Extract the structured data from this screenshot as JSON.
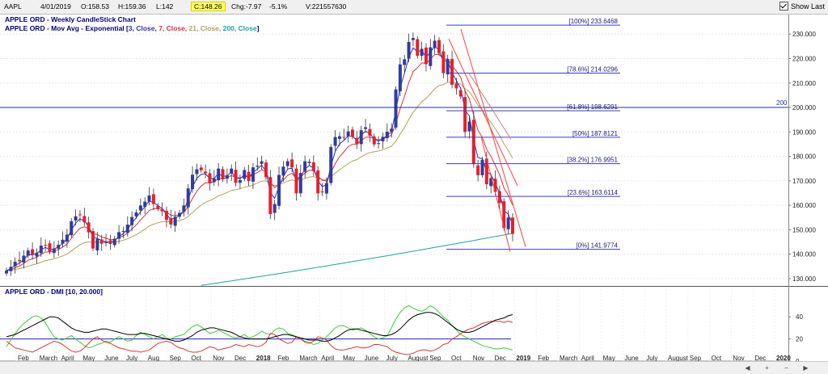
{
  "toolbar": {
    "symbol": "AAPL",
    "date": "4/01/2019",
    "open": "O:158.53",
    "high": "H:159.36",
    "low": "L:142",
    "close": "C:148.26",
    "change": "Chg:-7.97",
    "change_pct": "-5.1%",
    "volume": "V:221557630",
    "show_last_label": "Show Last",
    "show_last_checked": true
  },
  "colors": {
    "up_candle": "#2f3d9a",
    "down_candle": "#e5202a",
    "ema3": "#2b2bd9",
    "ema7": "#e0303c",
    "ema21": "#b8a050",
    "ema200": "#1aa5a5",
    "fib": "#3a3ad0",
    "di_plus": "#36d036",
    "di_minus": "#e83030",
    "adx": "#000000",
    "threshold": "#2020d0",
    "annotation": "#ff4040"
  },
  "chart_data": [
    {
      "type": "candlestick",
      "title": "APPLE ORD - Weekly CandleStick Chart",
      "subtitle": "APPLE ORD - Mov Avg - Exponential",
      "ma_legend": {
        "open": "[",
        "close": "]",
        "items": [
          {
            "text": "3, Close, ",
            "color": "#2b2bd9"
          },
          {
            "text": "7, Close, ",
            "color": "#e0303c"
          },
          {
            "text": "21, Close, ",
            "color": "#b8a050"
          },
          {
            "text": "200, Close",
            "color": "#1aa5a5"
          }
        ]
      },
      "ylim": [
        127,
        238
      ],
      "y_ticks": [
        "130.000",
        "140.000",
        "150.000",
        "160.000",
        "170.000",
        "180.000",
        "190.000",
        "200.000",
        "210.000",
        "220.000",
        "230.000"
      ],
      "x_months": [
        "Feb",
        "March",
        "April",
        "May",
        "June",
        "July",
        "Aug",
        "Sep",
        "Oct",
        "Nov",
        "Dec",
        "2018",
        "Feb",
        "March",
        "April",
        "May",
        "June",
        "July",
        "August",
        "Sep",
        "Oct",
        "Nov",
        "Dec",
        "2019",
        "Feb",
        "March",
        "April",
        "May",
        "June",
        "July",
        "August",
        "Sep",
        "Oct",
        "Nov",
        "Dec",
        "2020"
      ],
      "horizontal_line": {
        "value": 200,
        "label": "200"
      },
      "fibonacci": [
        {
          "label": "[100%] 233.6468",
          "value": 233.6468
        },
        {
          "label": "[78.6%] 214.0296",
          "value": 214.0296
        },
        {
          "label": "[61.8%] 198.6291",
          "value": 198.6291
        },
        {
          "label": "[50%] 187.8121",
          "value": 187.8121
        },
        {
          "label": "[38.2%] 176.9951",
          "value": 176.9951
        },
        {
          "label": "[23.6%] 163.6114",
          "value": 163.6114
        },
        {
          "label": "[0%] 141.9774",
          "value": 141.9774
        }
      ],
      "close_series": [
        133.3,
        134.8,
        136.9,
        137.1,
        139.4,
        141.5,
        139.8,
        140.6,
        143.5,
        143.7,
        141.0,
        142.3,
        143.8,
        145.9,
        148.0,
        153.5,
        155.5,
        156.1,
        153.0,
        148.9,
        142.3,
        146.3,
        144.3,
        144.9,
        144.2,
        146.3,
        149.0,
        149.5,
        152.1,
        155.2,
        157.1,
        159.9,
        161.5,
        164.0,
        160.5,
        158.6,
        157.5,
        154.0,
        152.1,
        155.3,
        156.9,
        159.9,
        166.9,
        172.5,
        174.7,
        174.3,
        173.1,
        169.0,
        171.0,
        175.0,
        170.6,
        172.2,
        175.0,
        169.2,
        170.3,
        174.4,
        169.9,
        175.5,
        176.2,
        178.0,
        171.5,
        156.4,
        160.5,
        172.4,
        175.8,
        178.0,
        175.5,
        164.9,
        173.2,
        178.0,
        177.8,
        174.0,
        164.9,
        165.3,
        169.1,
        183.8,
        187.9,
        188.2,
        187.9,
        190.2,
        188.0,
        185.0,
        190.7,
        191.9,
        188.4,
        184.9,
        185.4,
        188.0,
        190.1,
        191.3,
        207.4,
        217.6,
        219.7,
        226.8,
        228.4,
        221.1,
        224.0,
        217.7,
        224.6,
        227.3,
        222.2,
        214.0,
        219.8,
        209.3,
        207.8,
        204.5,
        190.0,
        194.2,
        176.8,
        172.3,
        178.6,
        168.6,
        171.1,
        165.5,
        160.9,
        150.7,
        155.0,
        148.3
      ],
      "ema200_end": 148.5
    },
    {
      "type": "line",
      "title": "APPLE ORD - DMI [10, 20.000]",
      "ylim": [
        0,
        65
      ],
      "y_ticks": [
        "40",
        "20",
        "0"
      ],
      "threshold": 20,
      "series": [
        {
          "role": "di_plus",
          "values": [
            13,
            19,
            25,
            30,
            34,
            37,
            40,
            41,
            39,
            35,
            28,
            22,
            20,
            19,
            21,
            23,
            20,
            17,
            14,
            12,
            13,
            15,
            16,
            18,
            17,
            20,
            22,
            20,
            18,
            19,
            23,
            26,
            24,
            22,
            20,
            22,
            24,
            21,
            20,
            22,
            23,
            24,
            28,
            31,
            33,
            31,
            28,
            25,
            26,
            28,
            26,
            24,
            22,
            21,
            22,
            24,
            21,
            22,
            24,
            27,
            25,
            24,
            28,
            30,
            29,
            25,
            24,
            22,
            20,
            18,
            17,
            15,
            16,
            19,
            22,
            26,
            30,
            32,
            32,
            30,
            28,
            29,
            30,
            28,
            25,
            22,
            20,
            21,
            23,
            30,
            38,
            44,
            48,
            50,
            48,
            46,
            45,
            47,
            50,
            48,
            44,
            40,
            37,
            32,
            28,
            24,
            22,
            20,
            18,
            16,
            14,
            13,
            12,
            11,
            11,
            12,
            11,
            10
          ]
        },
        {
          "role": "di_minus",
          "values": [
            18,
            15,
            12,
            11,
            10,
            9,
            8,
            10,
            12,
            14,
            16,
            18,
            17,
            15,
            12,
            9,
            8,
            9,
            12,
            16,
            20,
            22,
            19,
            17,
            16,
            14,
            12,
            11,
            10,
            9,
            9,
            8,
            9,
            10,
            13,
            16,
            17,
            18,
            17,
            14,
            12,
            11,
            9,
            8,
            8,
            9,
            11,
            13,
            12,
            10,
            11,
            12,
            13,
            15,
            14,
            13,
            15,
            14,
            13,
            14,
            17,
            25,
            24,
            20,
            18,
            16,
            17,
            22,
            20,
            17,
            16,
            18,
            22,
            21,
            19,
            14,
            11,
            10,
            10,
            11,
            12,
            13,
            12,
            12,
            13,
            15,
            15,
            14,
            13,
            10,
            8,
            7,
            6,
            6,
            7,
            9,
            10,
            10,
            9,
            10,
            12,
            15,
            16,
            20,
            22,
            25,
            27,
            29,
            30,
            32,
            34,
            35,
            36,
            36,
            36,
            35,
            36,
            35
          ]
        },
        {
          "role": "adx",
          "values": [
            22,
            23,
            24,
            26,
            28,
            30,
            32,
            34,
            36,
            38,
            40,
            40,
            39,
            36,
            33,
            30,
            28,
            27,
            26,
            26,
            27,
            28,
            29,
            29,
            28,
            27,
            26,
            25,
            24,
            24,
            24,
            25,
            25,
            24,
            23,
            22,
            21,
            20,
            19,
            18,
            18,
            19,
            21,
            23,
            26,
            28,
            29,
            30,
            30,
            29,
            28,
            27,
            26,
            24,
            22,
            21,
            20,
            20,
            20,
            20,
            20,
            21,
            22,
            23,
            24,
            24,
            23,
            22,
            21,
            20,
            19,
            19,
            19,
            18,
            18,
            19,
            21,
            23,
            26,
            28,
            29,
            29,
            28,
            27,
            26,
            25,
            24,
            23,
            23,
            24,
            26,
            29,
            33,
            37,
            40,
            42,
            43,
            44,
            44,
            43,
            41,
            38,
            35,
            32,
            29,
            27,
            26,
            26,
            27,
            29,
            31,
            33,
            35,
            37,
            38,
            39,
            41,
            42
          ]
        }
      ]
    }
  ]
}
